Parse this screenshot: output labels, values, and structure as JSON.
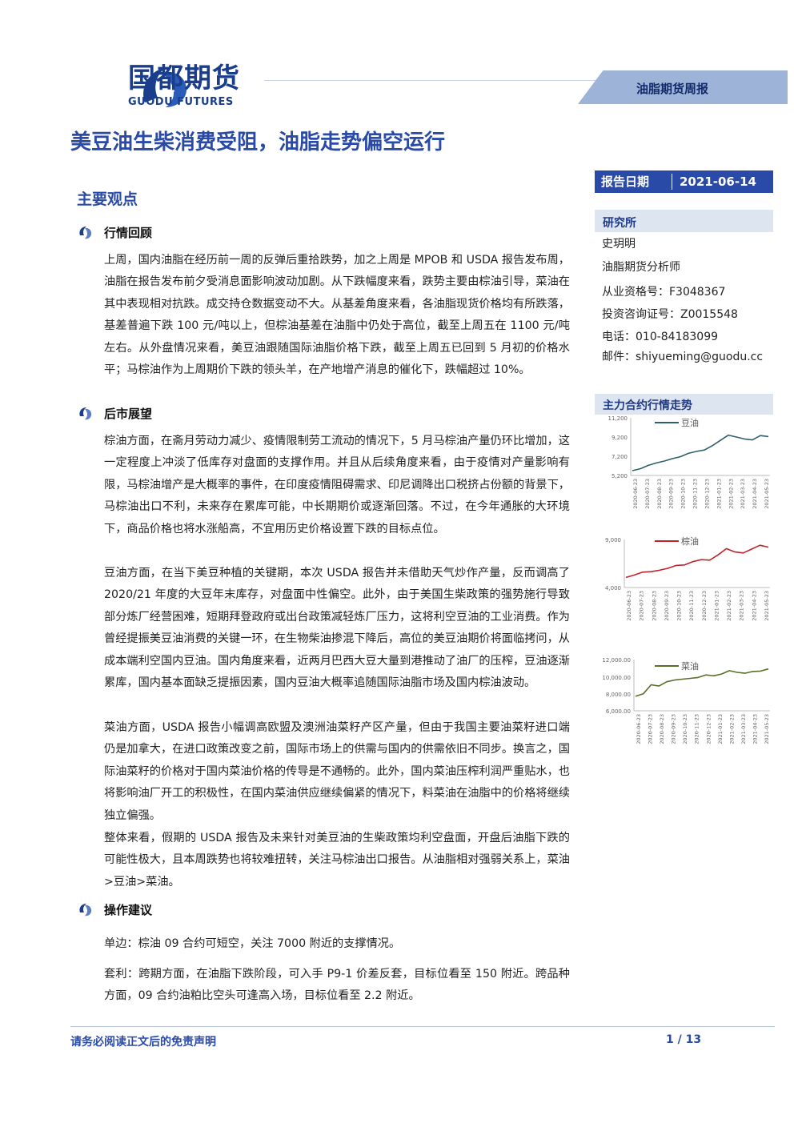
{
  "header": {
    "brand_cn": "国都期货",
    "brand_en": "GUODU FUTURES",
    "report_type": "油脂期货周报"
  },
  "title": "美豆油生柴消费受阻，油脂走势偏空运行",
  "report_date": {
    "label": "报告日期",
    "value": "2021-06-14"
  },
  "main_section": "主要观点",
  "sections": [
    {
      "heading": "行情回顾",
      "paragraphs": [
        "上周，国内油脂在经历前一周的反弹后重拾跌势，加之上周是 MPOB 和 USDA 报告发布周，油脂在报告发布前夕受消息面影响波动加剧。从下跌幅度来看，跌势主要由棕油引导，菜油在其中表现相对抗跌。成交持仓数据变动不大。从基差角度来看，各油脂现货价格均有所跌落，基差普遍下跌 100 元/吨以上，但棕油基差在油脂中仍处于高位，截至上周五在 1100 元/吨左右。从外盘情况来看，美豆油跟随国际油脂价格下跌，截至上周五已回到 5 月初的价格水平；马棕油作为上周期价下跌的领头羊，在产地增产消息的催化下，跌幅超过 10%。"
      ]
    },
    {
      "heading": "后市展望",
      "paragraphs": [
        "棕油方面，在斋月劳动力减少、疫情限制劳工流动的情况下，5 月马棕油产量仍环比增加，这一定程度上冲淡了低库存对盘面的支撑作用。并且从后续角度来看，由于疫情对产量影响有限，马棕油增产是大概率的事件，在印度疫情阻碍需求、印尼调降出口税挤占份额的背景下，马棕油出口不利，未来存在累库可能，中长期期价或逐渐回落。不过，在今年通胀的大环境下，商品价格也将水涨船高，不宜用历史价格设置下跌的目标点位。",
        "豆油方面，在当下美豆种植的关键期，本次 USDA 报告并未借助天气炒作产量，反而调高了 2020/21 年度的大豆年末库存，对盘面中性偏空。此外，由于美国生柴政策的强势施行导致部分炼厂经营困难，短期拜登政府或出台政策减轻炼厂压力，这将利空豆油的工业消费。作为曾经提振美豆油消费的关键一环，在生物柴油掺混下降后，高位的美豆油期价将面临拷问，从成本端利空国内豆油。国内角度来看，近两月巴西大豆大量到港推动了油厂的压榨，豆油逐渐累库，国内基本面缺乏提振因素，国内豆油大概率追随国际油脂市场及国内棕油波动。",
        "菜油方面，USDA 报告小幅调高欧盟及澳洲油菜籽产区产量，但由于我国主要油菜籽进口端仍是加拿大，在进口政策改变之前，国际市场上的供需与国内的供需依旧不同步。换言之，国际油菜籽的价格对于国内菜油价格的传导是不通畅的。此外，国内菜油压榨利润严重贴水，也将影响油厂开工的积极性，在国内菜油供应继续偏紧的情况下，料菜油在油脂中的价格将继续独立偏强。",
        "整体来看，假期的 USDA 报告及未来针对美豆油的生柴政策均利空盘面，开盘后油脂下跌的可能性极大，且本周跌势也将较难扭转，关注马棕油出口报告。从油脂相对强弱关系上，菜油>豆油>菜油。"
      ]
    },
    {
      "heading": "操作建议",
      "paragraphs": [
        "单边：棕油 09 合约可短空，关注 7000 附近的支撑情况。",
        "套利：跨期方面，在油脂下跌阶段，可入手 P9-1 价差反套，目标位看至 150 附近。跨品种方面，09 合约油粕比空头可逢高入场，目标位看至 2.2 附近。"
      ]
    }
  ],
  "analyst": {
    "org_label": "研究所",
    "name": "史玥明",
    "title": "油脂期货分析师",
    "license": "从业资格号：F3048367",
    "consult": "投资咨询证号：Z0015548",
    "phone": "电话：010-84183099",
    "email": "邮件：shiyueming@guodu.cc"
  },
  "chart_heading": "主力合约行情走势",
  "chart_data": [
    {
      "type": "line",
      "series": [
        {
          "name": "豆油",
          "color": "#2e5f6e"
        }
      ],
      "y_ticks": [
        "11,200",
        "9,200",
        "7,200",
        "5,200"
      ],
      "ylim": [
        5200,
        11200
      ],
      "x_ticks": [
        "2020-06-23",
        "2020-07-23",
        "2020-08-23",
        "2020-09-23",
        "2020-10-23",
        "2020-11-23",
        "2020-12-23",
        "2021-01-23",
        "2021-02-23",
        "2021-03-23",
        "2021-04-23",
        "2021-05-23"
      ],
      "y_points": [
        5700,
        5900,
        6250,
        6500,
        6700,
        6950,
        7150,
        7500,
        7700,
        7850,
        8300,
        8850,
        9400,
        9200,
        9000,
        8900,
        9350,
        9250
      ]
    },
    {
      "type": "line",
      "series": [
        {
          "name": "棕油",
          "color": "#c0242a"
        }
      ],
      "y_ticks": [
        "9,000",
        "4,000"
      ],
      "ylim": [
        4000,
        10000
      ],
      "x_ticks": [
        "2020-06-23",
        "2020-07-23",
        "2020-08-23",
        "2020-09-23",
        "2020-10-23",
        "2020-11-23",
        "2020-12-23",
        "2021-01-23",
        "2021-02-23",
        "2021-03-23",
        "2021-04-23",
        "2021-05-23"
      ],
      "y_points": [
        5050,
        5300,
        5600,
        5650,
        5800,
        6000,
        6300,
        6350,
        6700,
        6900,
        6850,
        7400,
        8050,
        7700,
        7600,
        8000,
        8400,
        8200
      ]
    },
    {
      "type": "line",
      "series": [
        {
          "name": "菜油",
          "color": "#5a6e2a"
        }
      ],
      "y_ticks": [
        "12,000.00",
        "10,000.00",
        "8,000.00",
        "6,000.00"
      ],
      "ylim": [
        6000,
        12000
      ],
      "x_ticks": [
        "2020-06-23",
        "2020-07-23",
        "2020-08-23",
        "2020-09-23",
        "2020-10-23",
        "2020-11-23",
        "2020-12-23",
        "2021-01-23",
        "2021-02-23",
        "2021-03-23",
        "2021-04-23",
        "2021-05-23"
      ],
      "y_points": [
        7700,
        8000,
        9050,
        8900,
        9400,
        9600,
        9700,
        9800,
        9900,
        10200,
        10100,
        10300,
        10700,
        10500,
        10400,
        10600,
        10650,
        10900
      ]
    }
  ],
  "footer": {
    "disclaimer": "请务必阅读正文后的免责声明",
    "page": "1 / 13"
  }
}
